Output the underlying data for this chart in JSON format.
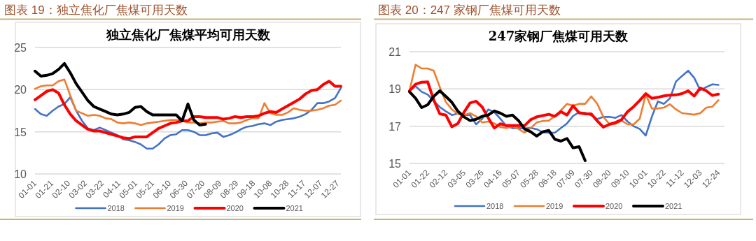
{
  "chart_data": [
    {
      "type": "line",
      "title": "独立焦化厂焦煤平均可用天数",
      "annotations": [
        "图表 19：独立焦化厂焦煤可用天数"
      ],
      "x": [
        "--01-01",
        "--01-08",
        "--01-15",
        "--01-22",
        "--01-29",
        "--02-05",
        "--02-12",
        "--02-19",
        "--02-26",
        "--03-05",
        "--03-12",
        "--03-19",
        "--03-26",
        "--04-02",
        "--04-09",
        "--04-16",
        "--04-23",
        "--04-30",
        "--05-07",
        "--05-14",
        "--05-21",
        "--05-28",
        "--06-04",
        "--06-11",
        "--06-18",
        "--06-25",
        "--07-02",
        "--07-09",
        "--07-16",
        "--07-23",
        "--07-30",
        "--08-06",
        "--08-13",
        "--08-20",
        "--08-27",
        "--09-03",
        "--09-10",
        "--09-17",
        "--09-24",
        "--10-01",
        "--10-08",
        "--10-15",
        "--10-22",
        "--10-29",
        "--11-05",
        "--11-12",
        "--11-19",
        "--11-26",
        "--12-03",
        "--12-10",
        "--12-17",
        "--12-24",
        "--12-31"
      ],
      "xlim": [
        "--01-01",
        "--12-31"
      ],
      "xticks": [
        {
          "value": "--01-01",
          "label": "01-01"
        },
        {
          "value": "--01-21",
          "label": "01-21"
        },
        {
          "value": "--02-10",
          "label": "02-10"
        },
        {
          "value": "--03-02",
          "label": "03-02"
        },
        {
          "value": "--03-22",
          "label": "03-22"
        },
        {
          "value": "--04-11",
          "label": "04-11"
        },
        {
          "value": "--05-01",
          "label": "05-01"
        },
        {
          "value": "--05-21",
          "label": "05-21"
        },
        {
          "value": "--06-10",
          "label": "06-10"
        },
        {
          "value": "--06-30",
          "label": "06-30"
        },
        {
          "value": "--07-20",
          "label": "07-20"
        },
        {
          "value": "--08-09",
          "label": "08-09"
        },
        {
          "value": "--08-29",
          "label": "08-29"
        },
        {
          "value": "--09-18",
          "label": "09-18"
        },
        {
          "value": "--10-08",
          "label": "10-08"
        },
        {
          "value": "--10-28",
          "label": "10-28"
        },
        {
          "value": "--11-17",
          "label": "11-17"
        },
        {
          "value": "--12-07",
          "label": "12-07"
        },
        {
          "value": "--12-27",
          "label": "12-27"
        }
      ],
      "ylim": [
        10,
        25
      ],
      "yticks": [
        10,
        15,
        20,
        25
      ],
      "grid": "y",
      "legend": "bottom",
      "series": [
        {
          "name": "2018",
          "color": "#4472c4",
          "values": [
            17.7,
            17.1,
            16.9,
            17.5,
            18.0,
            18.3,
            19.1,
            17.5,
            16.3,
            15.4,
            15.2,
            15.5,
            15.2,
            14.9,
            14.6,
            14.1,
            14.0,
            13.8,
            13.5,
            13.0,
            13.0,
            13.5,
            14.2,
            14.6,
            14.7,
            15.2,
            15.2,
            15.0,
            14.6,
            14.6,
            14.8,
            14.9,
            14.4,
            14.6,
            14.9,
            15.3,
            15.6,
            15.7,
            15.9,
            16.0,
            15.8,
            16.2,
            16.4,
            16.5,
            16.6,
            16.8,
            17.1,
            17.6,
            18.4,
            18.4,
            18.6,
            19.0,
            20.2
          ]
        },
        {
          "name": "2019",
          "color": "#ed7d31",
          "values": [
            20.1,
            20.4,
            20.5,
            20.5,
            21.0,
            21.2,
            19.3,
            17.5,
            17.2,
            16.9,
            17.0,
            16.9,
            16.6,
            16.5,
            16.1,
            16.0,
            16.1,
            16.0,
            15.8,
            16.0,
            16.1,
            16.2,
            16.3,
            16.4,
            16.4,
            16.3,
            16.1,
            16.1,
            16.0,
            16.1,
            16.1,
            16.2,
            16.3,
            16.0,
            16.0,
            16.1,
            16.4,
            16.6,
            16.6,
            18.4,
            17.2,
            17.0,
            17.0,
            17.3,
            17.8,
            17.6,
            17.5,
            17.5,
            17.6,
            17.8,
            18.1,
            18.2,
            18.7
          ]
        },
        {
          "name": "2020",
          "color": "#ff0000",
          "values": [
            18.8,
            19.3,
            19.8,
            20.0,
            19.6,
            18.2,
            17.1,
            16.3,
            15.8,
            15.3,
            15.1,
            15.1,
            14.9,
            14.7,
            14.5,
            14.3,
            14.2,
            14.4,
            14.4,
            14.4,
            14.9,
            15.4,
            15.7,
            16.0,
            16.1,
            16.3,
            16.3,
            16.8,
            16.8,
            16.7,
            16.7,
            16.7,
            16.5,
            16.6,
            16.8,
            16.7,
            16.8,
            16.8,
            16.9,
            17.2,
            17.4,
            17.3,
            17.7,
            18.1,
            18.5,
            18.9,
            19.5,
            19.9,
            20.0,
            20.6,
            21.0,
            20.4,
            20.4
          ]
        },
        {
          "name": "2021",
          "color": "#000000",
          "values": [
            22.2,
            21.6,
            21.7,
            21.9,
            22.4,
            23.1,
            22.0,
            20.7,
            19.7,
            18.7,
            18.0,
            17.7,
            17.4,
            17.1,
            17.0,
            17.1,
            17.3,
            17.9,
            18.0,
            17.4,
            17.0,
            17.0,
            17.0,
            17.0,
            17.0,
            16.3,
            18.3,
            16.4,
            15.8,
            15.9,
            null,
            null,
            null,
            null,
            null,
            null,
            null,
            null,
            null,
            null,
            null,
            null,
            null,
            null,
            null,
            null,
            null,
            null,
            null,
            null,
            null,
            null,
            null
          ]
        }
      ]
    },
    {
      "type": "line",
      "title": "247家钢厂焦煤可用天数",
      "annotations": [
        "图表 20：247 家钢厂焦煤可用天数"
      ],
      "x": [
        "--01-01",
        "--01-08",
        "--01-15",
        "--01-22",
        "--01-29",
        "--02-05",
        "--02-12",
        "--02-19",
        "--02-26",
        "--03-05",
        "--03-12",
        "--03-19",
        "--03-26",
        "--04-02",
        "--04-09",
        "--04-16",
        "--04-23",
        "--04-30",
        "--05-07",
        "--05-14",
        "--05-21",
        "--05-28",
        "--06-04",
        "--06-11",
        "--06-18",
        "--06-25",
        "--07-02",
        "--07-09",
        "--07-16",
        "--07-23",
        "--07-30",
        "--08-06",
        "--08-13",
        "--08-20",
        "--08-27",
        "--09-03",
        "--09-10",
        "--09-17",
        "--09-24",
        "--10-01",
        "--10-08",
        "--10-15",
        "--10-22",
        "--10-29",
        "--11-05",
        "--11-12",
        "--11-19",
        "--11-26",
        "--12-03",
        "--12-10",
        "--12-17",
        "--12-24"
      ],
      "xlim": [
        "--01-01",
        "--12-31"
      ],
      "xticks": [
        {
          "value": "--01-01",
          "label": "01-01"
        },
        {
          "value": "--01-22",
          "label": "01-22"
        },
        {
          "value": "--02-12",
          "label": "02-12"
        },
        {
          "value": "--03-05",
          "label": "03-05"
        },
        {
          "value": "--03-26",
          "label": "03-26"
        },
        {
          "value": "--04-16",
          "label": "04-16"
        },
        {
          "value": "--05-07",
          "label": "05-07"
        },
        {
          "value": "--05-28",
          "label": "05-28"
        },
        {
          "value": "--06-18",
          "label": "06-18"
        },
        {
          "value": "--07-09",
          "label": "07-09"
        },
        {
          "value": "--07-30",
          "label": "07-30"
        },
        {
          "value": "--08-20",
          "label": "08-20"
        },
        {
          "value": "--09-10",
          "label": "09-10"
        },
        {
          "value": "--10-01",
          "label": "10-01"
        },
        {
          "value": "--10-22",
          "label": "10-22"
        },
        {
          "value": "--11-12",
          "label": "11-12"
        },
        {
          "value": "--12-03",
          "label": "12-03"
        },
        {
          "value": "--12-24",
          "label": "12-24"
        }
      ],
      "ylim": [
        15,
        21
      ],
      "yticks": [
        15,
        17,
        19,
        21
      ],
      "grid": "y",
      "legend": "bottom",
      "series": [
        {
          "name": "2018",
          "color": "#4472c4",
          "values": [
            18.9,
            19.15,
            18.85,
            18.7,
            18.35,
            18.03,
            17.8,
            17.6,
            17.68,
            17.6,
            17.6,
            17.1,
            17.4,
            17.9,
            17.75,
            17.4,
            17.0,
            16.9,
            16.9,
            16.88,
            16.9,
            16.84,
            16.67,
            16.65,
            16.65,
            16.9,
            17.15,
            17.55,
            17.75,
            17.72,
            17.58,
            17.38,
            17.5,
            17.5,
            17.45,
            17.6,
            17.25,
            17.0,
            16.85,
            16.5,
            17.5,
            18.33,
            18.2,
            18.5,
            19.4,
            19.7,
            19.98,
            19.6,
            18.93,
            19.1,
            19.25,
            19.22
          ]
        },
        {
          "name": "2019",
          "color": "#ed7d31",
          "values": [
            18.9,
            20.3,
            20.1,
            20.1,
            19.98,
            19.1,
            18.3,
            17.9,
            17.65,
            17.6,
            17.7,
            17.53,
            17.2,
            17.25,
            17.15,
            16.95,
            16.9,
            17.0,
            16.85,
            16.65,
            16.9,
            17.2,
            17.28,
            17.3,
            17.55,
            17.85,
            18.2,
            18.1,
            18.2,
            18.2,
            18.6,
            18.2,
            17.5,
            17.12,
            17.12,
            17.3,
            17.1,
            17.1,
            17.4,
            18.7,
            17.95,
            17.95,
            18.0,
            18.18,
            17.9,
            17.7,
            17.66,
            17.62,
            17.7,
            18.0,
            18.05,
            18.4
          ]
        },
        {
          "name": "2020",
          "color": "#ff0000",
          "values": [
            18.9,
            19.25,
            19.36,
            19.38,
            18.41,
            17.66,
            17.6,
            16.97,
            17.15,
            17.75,
            18.25,
            18.34,
            18.03,
            17.45,
            16.9,
            17.13,
            17.03,
            17.03,
            17.03,
            17.03,
            17.35,
            17.5,
            17.57,
            17.64,
            17.53,
            17.78,
            17.6,
            18.1,
            17.72,
            17.66,
            17.66,
            17.28,
            16.95,
            17.1,
            17.2,
            17.35,
            17.78,
            18.05,
            18.38,
            18.75,
            18.5,
            18.55,
            18.63,
            18.67,
            18.68,
            18.75,
            18.9,
            18.62,
            19.05,
            18.9,
            18.65,
            18.72
          ]
        },
        {
          "name": "2021",
          "color": "#000000",
          "values": [
            18.85,
            18.5,
            18.0,
            18.15,
            18.6,
            18.9,
            18.6,
            18.28,
            17.8,
            17.5,
            17.3,
            17.37,
            17.53,
            17.6,
            17.82,
            17.7,
            17.53,
            17.6,
            17.3,
            16.85,
            16.7,
            16.47,
            16.7,
            16.77,
            16.3,
            16.2,
            16.34,
            15.84,
            15.9,
            15.15,
            null,
            null,
            null,
            null,
            null,
            null,
            null,
            null,
            null,
            null,
            null,
            null,
            null,
            null,
            null,
            null,
            null,
            null,
            null,
            null,
            null,
            null
          ]
        }
      ]
    }
  ]
}
